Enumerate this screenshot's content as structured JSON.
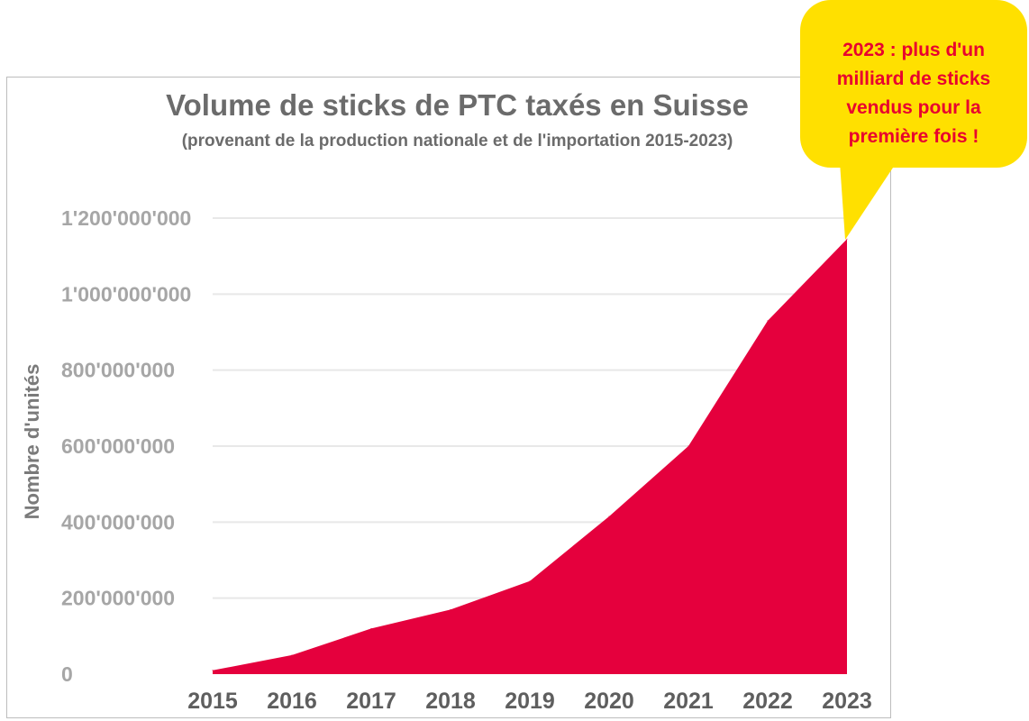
{
  "chart_data": {
    "type": "area",
    "title": "Volume de sticks de PTC taxés en Suisse",
    "subtitle": "(provenant de la production nationale et de l'importation 2015-2023)",
    "ylabel": "Nombre d'unités",
    "xlabel": "",
    "categories": [
      "2015",
      "2016",
      "2017",
      "2018",
      "2019",
      "2020",
      "2021",
      "2022",
      "2023"
    ],
    "series": [
      {
        "values": [
          10000000,
          50000000,
          120000000,
          170000000,
          245000000,
          415000000,
          600000000,
          930000000,
          1145000000
        ]
      }
    ],
    "ylim": [
      0,
      1200000000
    ],
    "yticks": [
      0,
      200000000,
      400000000,
      600000000,
      800000000,
      1000000000,
      1200000000
    ],
    "ytick_labels": [
      "0",
      "200'000'000",
      "400'000'000",
      "600'000'000",
      "800'000'000",
      "1'000'000'000",
      "1'200'000'000"
    ],
    "grid": true,
    "colors": {
      "area": "#e5003d",
      "grid": "#e8e8e8",
      "text": "#a6a6a6",
      "title": "#6b6b6b"
    }
  },
  "callout": {
    "lines": [
      "2023 : plus d'un",
      "milliard de sticks",
      "vendus pour la",
      "première fois !"
    ],
    "colors": {
      "fill": "#ffe000",
      "text": "#e8002f"
    }
  }
}
